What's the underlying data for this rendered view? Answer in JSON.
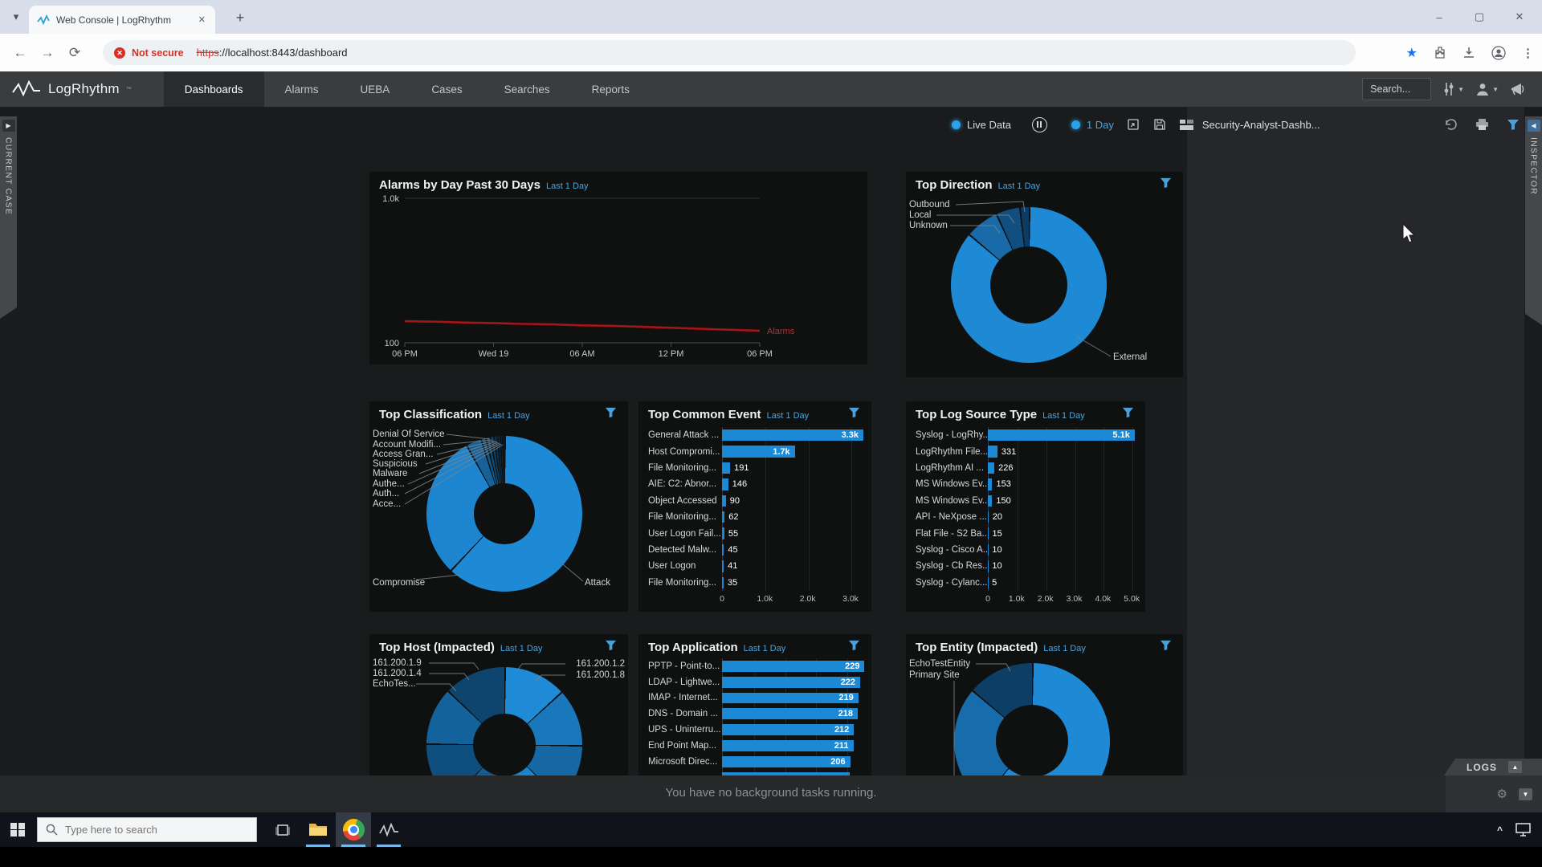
{
  "browser": {
    "tab_title": "Web Console | LogRhythm",
    "new_tab_button": "+",
    "close_tab": "✕",
    "security_badge": "Not secure",
    "url_scheme": "https",
    "url_rest": "://localhost:8443/dashboard",
    "window_controls": {
      "minimize": "–",
      "maximize": "▢",
      "close": "✕"
    }
  },
  "navbar": {
    "brand": "LogRhythm",
    "brand_tm": "™",
    "items": [
      {
        "label": "Dashboards",
        "active": true
      },
      {
        "label": "Alarms",
        "active": false
      },
      {
        "label": "UEBA",
        "active": false
      },
      {
        "label": "Cases",
        "active": false
      },
      {
        "label": "Searches",
        "active": false
      },
      {
        "label": "Reports",
        "active": false
      }
    ],
    "search_placeholder": "Search..."
  },
  "dash_toolbar": {
    "live_data_label": "Live Data",
    "time_range_label": "1 Day",
    "dashboard_name": "Security-Analyst-Dashb..."
  },
  "side_panels": {
    "left_tab": "CURRENT CASE",
    "right_tab": "INSPECTOR",
    "logs_tab": "LOGS"
  },
  "status_bar": {
    "message": "You have no background tasks running."
  },
  "taskbar": {
    "search_placeholder": "Type here to search"
  },
  "accent_colors": {
    "bar_blue": "#1b89d5",
    "alarm_red": "#a51418",
    "link_blue": "#4aa3e0"
  },
  "chart_data": [
    {
      "id": "alarms-by-day",
      "type": "line",
      "title": "Alarms by Day Past 30 Days",
      "subtitle": "Last 1 Day",
      "y_scale": "log",
      "y_ticks": [
        {
          "v": 1000,
          "label": "1.0k"
        },
        {
          "v": 100,
          "label": "100"
        }
      ],
      "x_ticks": [
        "06 PM",
        "Wed 19",
        "06 AM",
        "12 PM",
        "06 PM"
      ],
      "series": [
        {
          "name": "Alarms",
          "color": "#a51418",
          "values": [
            141,
            140,
            138,
            137,
            135,
            134,
            132,
            131,
            129,
            127,
            125,
            123,
            121
          ]
        }
      ]
    },
    {
      "id": "top-direction",
      "type": "donut",
      "title": "Top Direction",
      "subtitle": "Last 1 Day",
      "slices": [
        {
          "label": "External",
          "pct": 86,
          "color": "#1e8ad6"
        },
        {
          "label": "Unknown",
          "pct": 7,
          "color": "#186ba8"
        },
        {
          "label": "Local",
          "pct": 5,
          "color": "#114f81"
        },
        {
          "label": "Outbound",
          "pct": 2,
          "color": "#0c3c63"
        }
      ]
    },
    {
      "id": "top-classification",
      "type": "donut",
      "title": "Top Classification",
      "subtitle": "Last 1 Day",
      "slices": [
        {
          "label": "Attack",
          "pct": 61.8,
          "color": "#1e8ad6"
        },
        {
          "label": "Compromise",
          "pct": 30,
          "color": "#1d85cf"
        },
        {
          "label": "Denial Of Service",
          "pct": 3.2,
          "color": "#15619a"
        },
        {
          "label": "Account Modifi...",
          "pct": 1.0,
          "color": "#125685"
        },
        {
          "label": "Access Gran...",
          "pct": 0.9,
          "color": "#0f4b74"
        },
        {
          "label": "Suspicious",
          "pct": 0.8,
          "color": "#0d4065"
        },
        {
          "label": "Malware",
          "pct": 0.7,
          "color": "#0b3757"
        },
        {
          "label": "Authe...",
          "pct": 0.6,
          "color": "#092f4b"
        },
        {
          "label": "Auth...",
          "pct": 0.5,
          "color": "#08283f"
        },
        {
          "label": "Acce...",
          "pct": 0.5,
          "color": "#072235"
        }
      ]
    },
    {
      "id": "top-common-event",
      "type": "hbar",
      "title": "Top Common Event",
      "subtitle": "Last 1 Day",
      "x_max": 3450,
      "x_ticks": [
        {
          "v": 0,
          "label": "0"
        },
        {
          "v": 1000,
          "label": "1.0k"
        },
        {
          "v": 2000,
          "label": "2.0k"
        },
        {
          "v": 3000,
          "label": "3.0k"
        }
      ],
      "rows": [
        {
          "label": "General Attack ...",
          "value": 3300,
          "display": "3.3k"
        },
        {
          "label": "Host Compromi...",
          "value": 1700,
          "display": "1.7k"
        },
        {
          "label": "File Monitoring...",
          "value": 191,
          "display": "191"
        },
        {
          "label": "AIE: C2: Abnor...",
          "value": 146,
          "display": "146"
        },
        {
          "label": "Object Accessed",
          "value": 90,
          "display": "90"
        },
        {
          "label": "File Monitoring...",
          "value": 62,
          "display": "62"
        },
        {
          "label": "User Logon Fail...",
          "value": 55,
          "display": "55"
        },
        {
          "label": "Detected Malw...",
          "value": 45,
          "display": "45"
        },
        {
          "label": "User Logon",
          "value": 41,
          "display": "41"
        },
        {
          "label": "File Monitoring...",
          "value": 35,
          "display": "35"
        }
      ]
    },
    {
      "id": "top-log-source-type",
      "type": "hbar",
      "title": "Top Log Source Type",
      "subtitle": "Last 1 Day",
      "x_max": 5300,
      "x_ticks": [
        {
          "v": 0,
          "label": "0"
        },
        {
          "v": 1000,
          "label": "1.0k"
        },
        {
          "v": 2000,
          "label": "2.0k"
        },
        {
          "v": 3000,
          "label": "3.0k"
        },
        {
          "v": 4000,
          "label": "4.0k"
        },
        {
          "v": 5000,
          "label": "5.0k"
        }
      ],
      "rows": [
        {
          "label": "Syslog - LogRhy...",
          "value": 5100,
          "display": "5.1k"
        },
        {
          "label": "LogRhythm File...",
          "value": 331,
          "display": "331"
        },
        {
          "label": "LogRhythm AI ...",
          "value": 226,
          "display": "226"
        },
        {
          "label": "MS Windows Ev...",
          "value": 153,
          "display": "153"
        },
        {
          "label": "MS Windows Ev...",
          "value": 150,
          "display": "150"
        },
        {
          "label": "API - NeXpose ...",
          "value": 20,
          "display": "20"
        },
        {
          "label": "Flat File - S2 Ba...",
          "value": 15,
          "display": "15"
        },
        {
          "label": "Syslog - Cisco A...",
          "value": 10,
          "display": "10"
        },
        {
          "label": "Syslog - Cb Res...",
          "value": 10,
          "display": "10"
        },
        {
          "label": "Syslog - Cylanc...",
          "value": 5,
          "display": "5"
        }
      ]
    },
    {
      "id": "top-host-impacted",
      "type": "donut",
      "title": "Top Host (Impacted)",
      "subtitle": "Last 1 Day",
      "slices": [
        {
          "label": "161.200.1.2",
          "pct": 13,
          "color": "#1f8ad5"
        },
        {
          "label": "161.200.1.8",
          "pct": 12,
          "color": "#1977bb"
        },
        {
          "label": "",
          "pct": 12,
          "color": "#1568a4"
        },
        {
          "label": "",
          "pct": 13,
          "color": "#1d83cb"
        },
        {
          "label": "",
          "pct": 12,
          "color": "#135c92"
        },
        {
          "label": "EchoTes...",
          "pct": 13,
          "color": "#0f4f80"
        },
        {
          "label": "161.200.1.4",
          "pct": 12,
          "color": "#14629c"
        },
        {
          "label": "161.200.1.9",
          "pct": 13,
          "color": "#0d456f"
        }
      ]
    },
    {
      "id": "top-application",
      "type": "hbar",
      "title": "Top Application",
      "subtitle": "Last 1 Day",
      "x_max": 240,
      "axis": false,
      "x_ticks": [
        {
          "v": 50,
          "label": ""
        },
        {
          "v": 100,
          "label": ""
        },
        {
          "v": 150,
          "label": ""
        },
        {
          "v": 200,
          "label": ""
        }
      ],
      "rows": [
        {
          "label": "PPTP - Point-to...",
          "value": 229,
          "display": "229"
        },
        {
          "label": "LDAP - Lightwe...",
          "value": 222,
          "display": "222"
        },
        {
          "label": "IMAP - Internet...",
          "value": 219,
          "display": "219"
        },
        {
          "label": "DNS - Domain ...",
          "value": 218,
          "display": "218"
        },
        {
          "label": "UPS - Uninterru...",
          "value": 212,
          "display": "212"
        },
        {
          "label": "End Point Map...",
          "value": 211,
          "display": "211"
        },
        {
          "label": "Microsoft Direc...",
          "value": 206,
          "display": "206"
        },
        {
          "label": "",
          "value": 205,
          "display": ""
        }
      ]
    },
    {
      "id": "top-entity-impacted",
      "type": "donut",
      "title": "Top Entity (Impacted)",
      "subtitle": "Last 1 Day",
      "slices": [
        {
          "label": "",
          "pct": 61,
          "color": "#1e8ad6"
        },
        {
          "label": "Primary Site",
          "pct": 25,
          "color": "#176cab"
        },
        {
          "label": "EchoTestEntity",
          "pct": 14,
          "color": "#0d3f66"
        }
      ]
    }
  ]
}
